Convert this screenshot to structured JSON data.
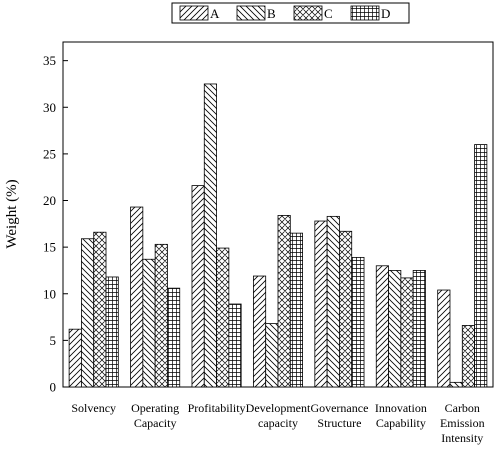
{
  "chart_data": {
    "type": "bar",
    "title": "",
    "xlabel": "",
    "ylabel": "Weight (%)",
    "ylim": [
      0,
      37
    ],
    "yticks": [
      0,
      5,
      10,
      15,
      20,
      25,
      30,
      35
    ],
    "legend_position": "top-center",
    "grid": false,
    "categories": [
      [
        "Solvency"
      ],
      [
        "Operating",
        "Capacity"
      ],
      [
        "Profitability"
      ],
      [
        "Development",
        "capacity"
      ],
      [
        "Governance",
        "Structure"
      ],
      [
        "Innovation",
        "Capability"
      ],
      [
        "Carbon",
        "Emission",
        "Intensity"
      ]
    ],
    "series": [
      {
        "name": "A",
        "pattern": "diag-forward",
        "values": [
          6.2,
          19.3,
          21.6,
          11.9,
          17.8,
          13.0,
          10.4
        ]
      },
      {
        "name": "B",
        "pattern": "diag-back",
        "values": [
          15.9,
          13.7,
          32.5,
          6.8,
          18.3,
          12.5,
          0.5
        ]
      },
      {
        "name": "C",
        "pattern": "crosshatch-diag",
        "values": [
          16.6,
          15.3,
          14.9,
          18.4,
          16.7,
          11.7,
          6.6
        ]
      },
      {
        "name": "D",
        "pattern": "grid",
        "values": [
          11.8,
          10.6,
          8.9,
          16.5,
          13.9,
          12.5,
          26.0
        ]
      }
    ]
  }
}
